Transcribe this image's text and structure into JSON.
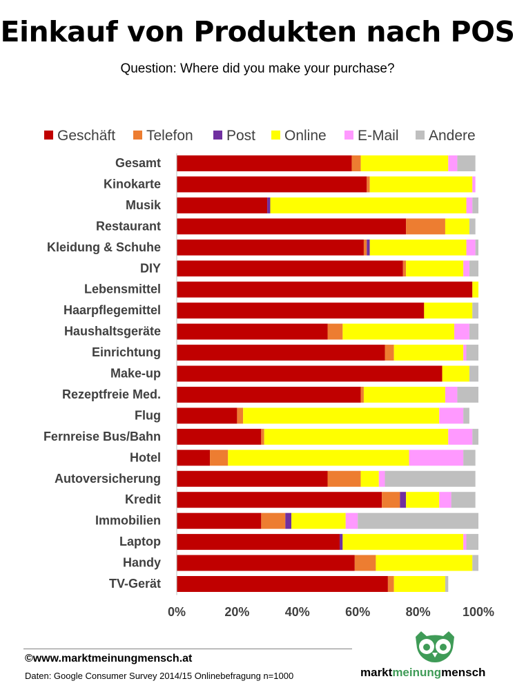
{
  "title": "Einkauf von Produkten nach POS",
  "subtitle": "Question: Where did you make your purchase?",
  "footer": {
    "copyright": "©www.marktmeinungmensch.at",
    "source": "Daten: Google Consumer Survey 2014/15 Onlinebefragung n=1000"
  },
  "logo": {
    "word1": "markt",
    "word2": "meinung",
    "word3": "mensch"
  },
  "chart_data": {
    "type": "bar",
    "orientation": "horizontal",
    "stacked": true,
    "xlim": [
      0,
      100
    ],
    "xticks": [
      "0%",
      "20%",
      "40%",
      "60%",
      "80%",
      "100%"
    ],
    "legend_position": "top",
    "grid": false,
    "categories": [
      "Gesamt",
      "Kinokarte",
      "Musik",
      "Restaurant",
      "Kleidung & Schuhe",
      "DIY",
      "Lebensmittel",
      "Haarpflegemittel",
      "Haushaltsgeräte",
      "Einrichtung",
      "Make-up",
      "Rezeptfreie Med.",
      "Flug",
      "Fernreise Bus/Bahn",
      "Hotel",
      "Autoversicherung",
      "Kredit",
      "Immobilien",
      "Laptop",
      "Handy",
      "TV-Gerät"
    ],
    "series": [
      {
        "name": "Geschäft",
        "color": "#c00000",
        "values": [
          58,
          63,
          30,
          76,
          62,
          75,
          98,
          82,
          50,
          69,
          88,
          61,
          20,
          28,
          11,
          50,
          68,
          28,
          54,
          59,
          70
        ]
      },
      {
        "name": "Telefon",
        "color": "#ed7d31",
        "values": [
          3,
          1,
          0,
          13,
          1,
          1,
          0,
          0,
          5,
          3,
          0,
          1,
          2,
          1,
          6,
          11,
          6,
          8,
          0,
          7,
          2
        ]
      },
      {
        "name": "Post",
        "color": "#7030a0",
        "values": [
          0,
          0,
          1,
          0,
          1,
          0,
          0,
          0,
          0,
          0,
          0,
          0,
          0,
          0,
          0,
          0,
          2,
          2,
          1,
          0,
          0
        ]
      },
      {
        "name": "Online",
        "color": "#ffff00",
        "values": [
          29,
          34,
          65,
          8,
          32,
          19,
          2,
          16,
          37,
          23,
          9,
          27,
          65,
          61,
          60,
          6,
          11,
          18,
          40,
          32,
          17
        ]
      },
      {
        "name": "E-Mail",
        "color": "#ff99ff",
        "values": [
          3,
          1,
          2,
          0,
          3,
          2,
          0,
          0,
          5,
          1,
          0,
          4,
          8,
          8,
          18,
          2,
          4,
          4,
          1,
          0,
          0
        ]
      },
      {
        "name": "Andere",
        "color": "#bfbfbf",
        "values": [
          6,
          0,
          2,
          2,
          1,
          3,
          0,
          2,
          3,
          4,
          3,
          7,
          2,
          2,
          4,
          30,
          8,
          40,
          4,
          2,
          1
        ]
      }
    ]
  }
}
